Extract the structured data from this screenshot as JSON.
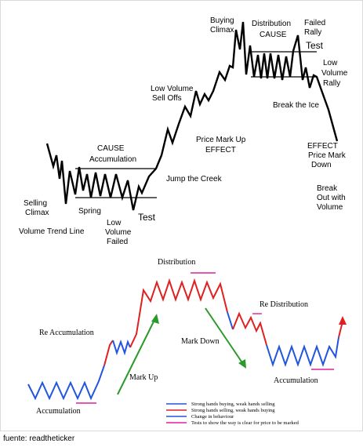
{
  "top_chart": {
    "labels": {
      "buying_climax": [
        "Buying",
        "Climax"
      ],
      "distribution": "Distribution",
      "cause_top": "CAUSE",
      "failed_rally": [
        "Failed",
        "Rally"
      ],
      "test_top": "Test",
      "low_volume_rally": [
        "Low",
        "Volume",
        "Rally"
      ],
      "low_volume_sell_offs": [
        "Low Volume",
        "Sell Offs"
      ],
      "break_the_ice": "Break the Ice",
      "price_mark_up": [
        "Price Mark Up",
        "EFFECT"
      ],
      "effect_mark_down": [
        "EFFECT",
        "Price Mark",
        "Down"
      ],
      "cause_accumulation": [
        "CAUSE",
        "Accumulation"
      ],
      "jump_the_creek": "Jump the Creek",
      "break_out": [
        "Break",
        "Out with",
        "Volume"
      ],
      "selling_climax": [
        "Selling",
        "Climax"
      ],
      "spring": "Spring",
      "test_bottom": "Test",
      "low_volume_failed": [
        "Low",
        "Volume",
        "Failed"
      ],
      "volume_trend_line": "Volume Trend Line"
    }
  },
  "bottom_chart": {
    "labels": {
      "distribution": "Distribution",
      "re_distribution": "Re Distribution",
      "re_accumulation": "Re Accumulation",
      "mark_down": "Mark Down",
      "mark_up": "Mark Up",
      "accumulation_right": "Accumulation",
      "accumulation_left": "Accumulation"
    },
    "legend": [
      {
        "text": "Strong hands buying, weak hands selling",
        "color": "#2255dd"
      },
      {
        "text": "Strong hands selling, weak hands buying",
        "color": "#e02020"
      },
      {
        "text": "Change in behaviour",
        "color": "#2255dd"
      },
      {
        "text": "Tests to show the way is clear for price to be marked",
        "color": "#e0209a"
      }
    ],
    "colors": {
      "blue": "#2255dd",
      "red": "#e02020",
      "green": "#2a9a2a",
      "magenta": "#e0209a"
    }
  },
  "source": "fuente: readtheticker"
}
